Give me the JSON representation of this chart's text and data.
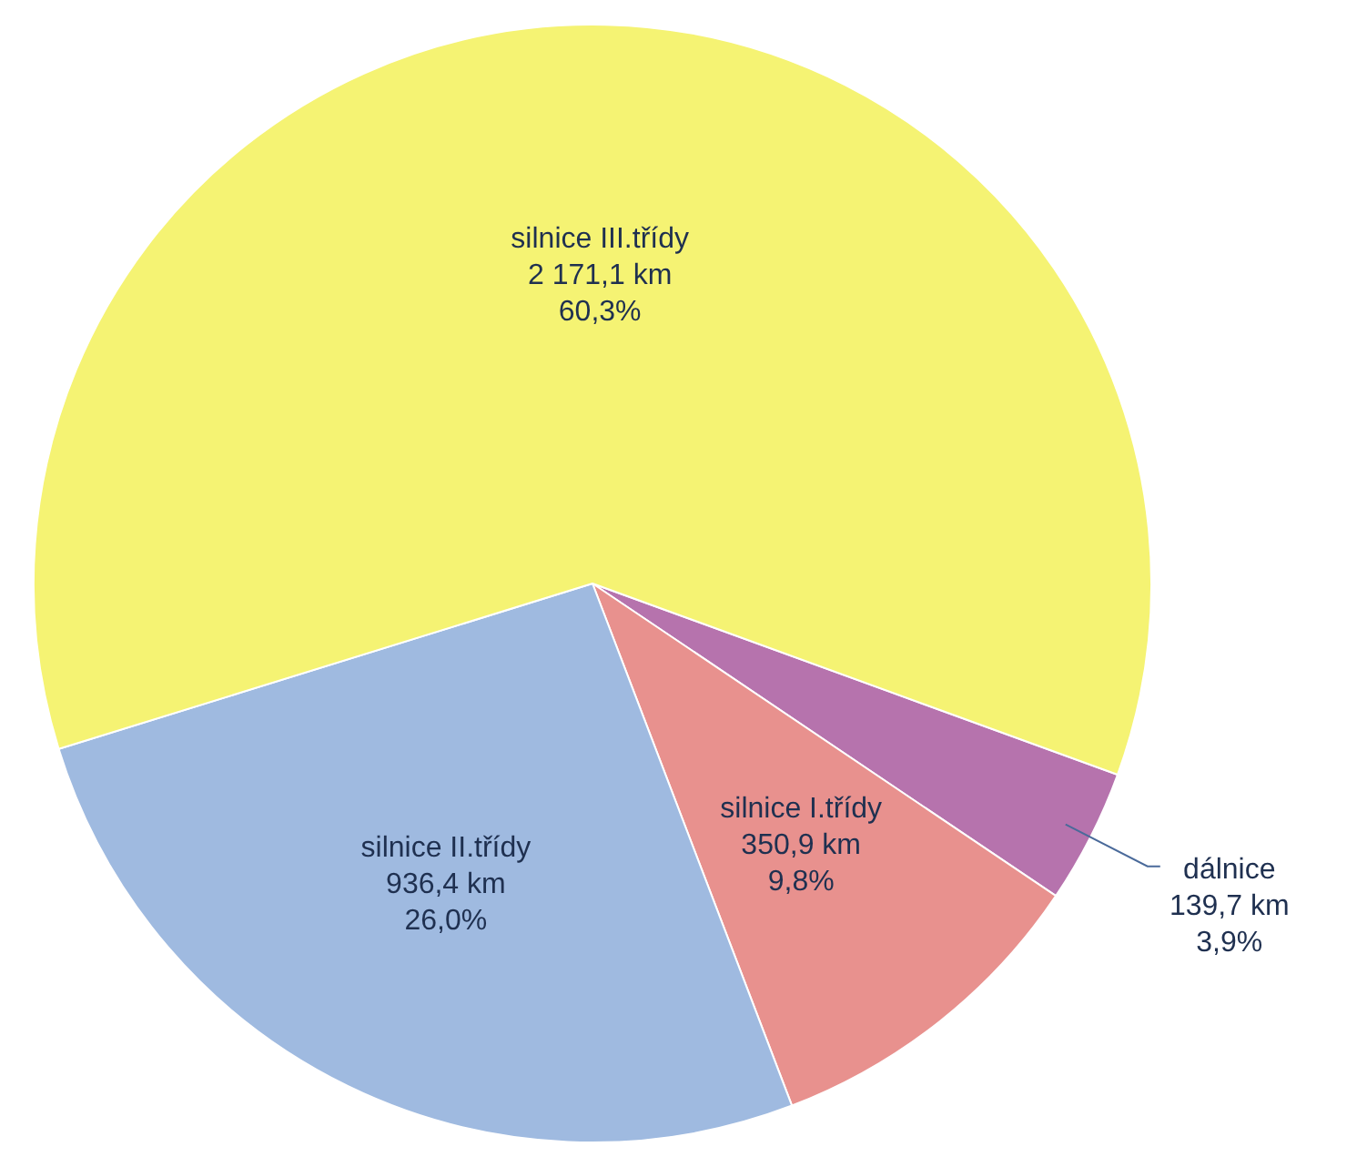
{
  "chart_data": {
    "type": "pie",
    "categories": [
      "dálnice",
      "silnice I.třídy",
      "silnice II.třídy",
      "silnice III.třídy"
    ],
    "values": [
      139.7,
      350.9,
      936.4,
      2171.1
    ],
    "colors": [
      "#b673ad",
      "#e8918e",
      "#9fbae0",
      "#f5f373"
    ],
    "value_labels": [
      "139,7 km\n3,9%",
      "350,9 km\n9,8%",
      "936,4 km\n26,0%",
      "2 171,1 km\n60,3%"
    ],
    "legend": false
  }
}
